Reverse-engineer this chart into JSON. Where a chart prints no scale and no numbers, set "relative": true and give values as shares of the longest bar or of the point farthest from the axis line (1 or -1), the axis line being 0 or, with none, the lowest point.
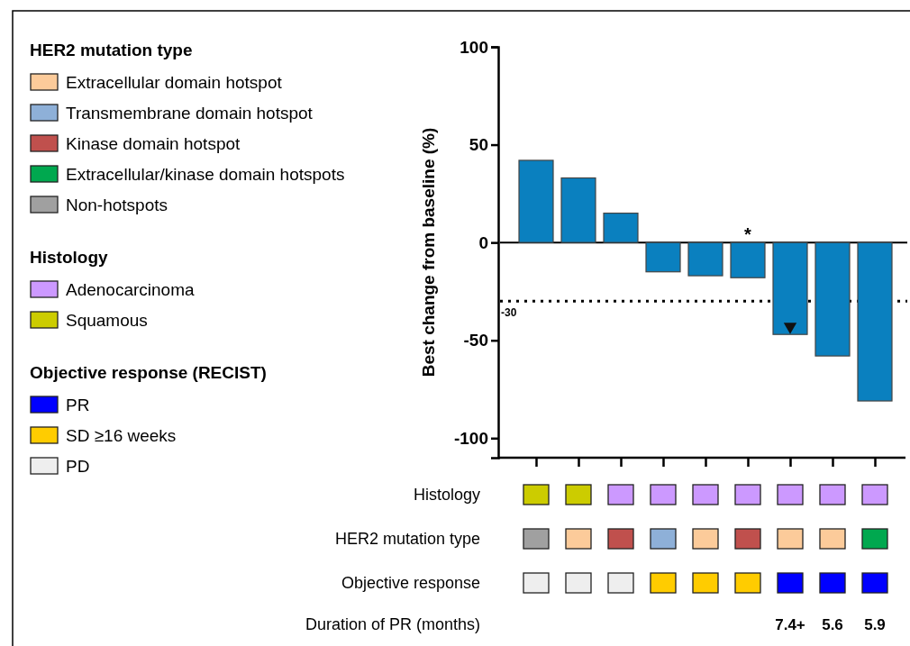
{
  "chart_data": [
    {
      "type": "bar",
      "ylabel": "Best change from baseline (%)",
      "categories": [
        null,
        null,
        null,
        null,
        null,
        null,
        null,
        null,
        null
      ],
      "ylim": [
        -110,
        100
      ],
      "yticks": [
        -100,
        -50,
        0,
        50,
        100
      ],
      "series": [
        {
          "type": "bar",
          "color": "#0a80bf",
          "values": [
            42,
            33,
            15,
            -15,
            -17,
            -18,
            -47,
            -58,
            -81
          ],
          "value_labels": [
            null,
            null,
            null,
            null,
            null,
            "*",
            null,
            null,
            null
          ]
        },
        {
          "type": "scatter",
          "marker": "triangle",
          "color": "#111111",
          "values": [
            null,
            null,
            null,
            null,
            null,
            null,
            -43,
            null,
            null
          ]
        }
      ],
      "ref_lines": [
        {
          "axis": "y",
          "value": 0,
          "line_style": "solid"
        },
        {
          "axis": "y",
          "value": -30,
          "label": "-30",
          "line_style": "dotted"
        }
      ]
    },
    {
      "type": "bar",
      "relative": true,
      "title": "Histology",
      "legend_title": "Histology",
      "legend": "left",
      "categories": [
        null,
        null,
        null,
        null,
        null,
        null,
        null,
        null,
        null
      ],
      "series": [
        {
          "name": "Adenocarcinoma",
          "color": "#cc99ff",
          "values": [
            null,
            null,
            1,
            1,
            1,
            1,
            1,
            1,
            1
          ]
        },
        {
          "name": "Squamous",
          "color": "#cccc00",
          "values": [
            1,
            1,
            null,
            null,
            null,
            null,
            null,
            null,
            null
          ]
        }
      ]
    },
    {
      "type": "bar",
      "relative": true,
      "title": "HER2 mutation type",
      "legend_title": "HER2 mutation type",
      "legend": "left",
      "categories": [
        null,
        null,
        null,
        null,
        null,
        null,
        null,
        null,
        null
      ],
      "series": [
        {
          "name": "Extracellular domain hotspot",
          "color": "#fccb9a",
          "values": [
            null,
            1,
            null,
            null,
            1,
            null,
            1,
            1,
            null
          ]
        },
        {
          "name": "Transmembrane domain hotspot",
          "color": "#8eb0d8",
          "values": [
            null,
            null,
            null,
            1,
            null,
            null,
            null,
            null,
            null
          ]
        },
        {
          "name": "Kinase domain hotspot",
          "color": "#c0504d",
          "values": [
            null,
            null,
            1,
            null,
            null,
            1,
            null,
            null,
            null
          ]
        },
        {
          "name": "Extracellular/kinase domain hotspots",
          "color": "#00a84f",
          "values": [
            null,
            null,
            null,
            null,
            null,
            null,
            null,
            null,
            1
          ]
        },
        {
          "name": "Non-hotspots",
          "color": "#a0a0a0",
          "values": [
            1,
            null,
            null,
            null,
            null,
            null,
            null,
            null,
            null
          ]
        }
      ]
    },
    {
      "type": "bar",
      "relative": true,
      "title": "Objective response",
      "legend_title": "Objective response (RECIST)",
      "legend": "left",
      "categories": [
        null,
        null,
        null,
        null,
        null,
        null,
        null,
        null,
        null
      ],
      "series": [
        {
          "name": "PR",
          "color": "#0000ff",
          "values": [
            null,
            null,
            null,
            null,
            null,
            null,
            1,
            1,
            1
          ]
        },
        {
          "name": "SD ≥16 weeks",
          "color": "#ffcc00",
          "values": [
            null,
            null,
            null,
            1,
            1,
            1,
            null,
            null,
            null
          ]
        },
        {
          "name": "PD",
          "color": "#eeeeee",
          "values": [
            1,
            1,
            1,
            null,
            null,
            null,
            null,
            null,
            null
          ]
        }
      ]
    },
    {
      "type": "other",
      "title": "Duration of PR (months)",
      "categories": [
        null,
        null,
        null,
        null,
        null,
        null,
        null,
        null,
        null
      ],
      "value_labels": [
        null,
        null,
        null,
        null,
        null,
        null,
        "7.4+",
        "5.6",
        "5.9"
      ]
    }
  ]
}
